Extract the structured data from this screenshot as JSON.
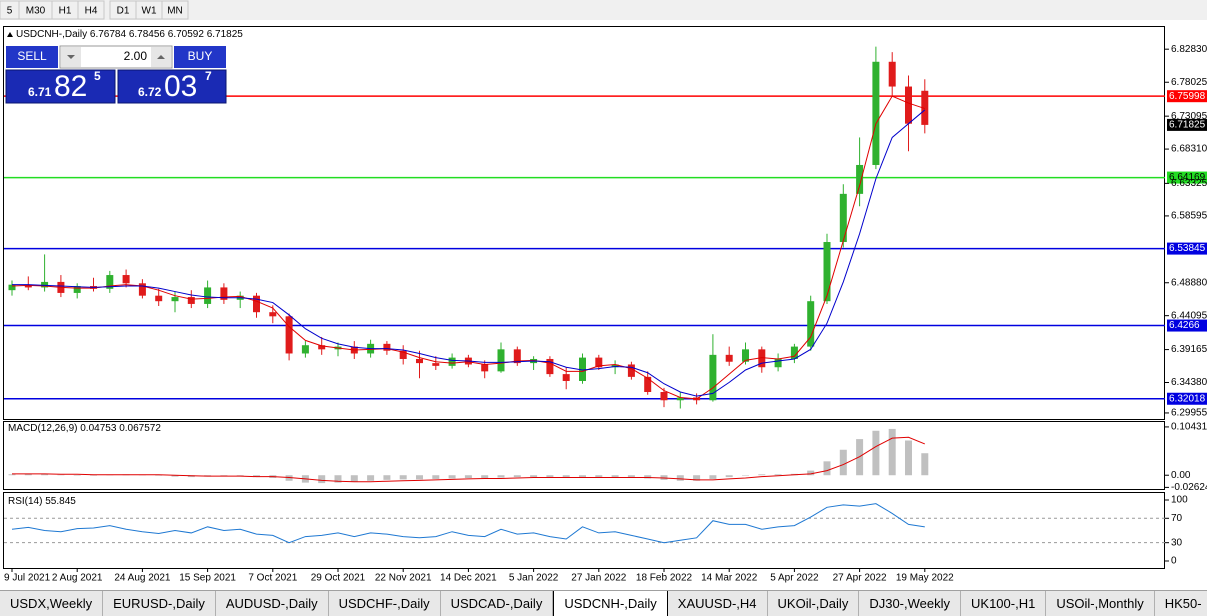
{
  "timeframes": [
    "5",
    "M30",
    "H1",
    "H4",
    "D1",
    "W1",
    "MN"
  ],
  "trade": {
    "sell": "SELL",
    "buy": "BUY",
    "volume": "2.00",
    "bid": {
      "head": "6.71",
      "big": "82",
      "sup": "5"
    },
    "ask": {
      "head": "6.72",
      "big": "03",
      "sup": "7"
    }
  },
  "chart_data": [
    {
      "type": "candlestick",
      "symbol": "USDCNH-,Daily",
      "up_color": "#2fb12f",
      "down_color": "#e01b1b",
      "ylim": [
        6.2893,
        6.862
      ],
      "yticks": [
        {
          "value": 6.8283,
          "label": "6.82830"
        },
        6.78025,
        6.73095,
        {
          "value": 6.6831,
          "label": "6.68310"
        },
        6.63325,
        6.58595,
        {
          "value": 6.4888,
          "label": "6.48880"
        },
        6.44095,
        6.39165,
        {
          "value": 6.3438,
          "label": "6.34380"
        },
        6.29955
      ],
      "categories": [
        "9 Jul 2021",
        null,
        null,
        null,
        "2 Aug 2021",
        null,
        null,
        null,
        "24 Aug 2021",
        null,
        null,
        null,
        "15 Sep 2021",
        null,
        null,
        null,
        "7 Oct 2021",
        null,
        null,
        null,
        "29 Oct 2021",
        null,
        null,
        null,
        "22 Nov 2021",
        null,
        null,
        null,
        "14 Dec 2021",
        null,
        null,
        null,
        "5 Jan 2022",
        null,
        null,
        null,
        "27 Jan 2022",
        null,
        null,
        null,
        "18 Feb 2022",
        null,
        null,
        null,
        "14 Mar 2022",
        null,
        null,
        null,
        "5 Apr 2022",
        null,
        null,
        null,
        "27 Apr 2022",
        null,
        null,
        null,
        "19 May 2022"
      ],
      "ohlc": [
        [
          6.478,
          6.492,
          6.47,
          6.486
        ],
        [
          6.486,
          6.498,
          6.478,
          6.482
        ],
        [
          6.482,
          6.53,
          6.476,
          6.49
        ],
        [
          6.49,
          6.5,
          6.468,
          6.474
        ],
        [
          6.474,
          6.488,
          6.466,
          6.484
        ],
        [
          6.484,
          6.496,
          6.476,
          6.48
        ],
        [
          6.48,
          6.506,
          6.474,
          6.5
        ],
        [
          6.5,
          6.508,
          6.482,
          6.488
        ],
        [
          6.488,
          6.494,
          6.466,
          6.47
        ],
        [
          6.47,
          6.48,
          6.455,
          6.462
        ],
        [
          6.462,
          6.476,
          6.446,
          6.468
        ],
        [
          6.468,
          6.478,
          6.452,
          6.458
        ],
        [
          6.458,
          6.492,
          6.452,
          6.482
        ],
        [
          6.482,
          6.488,
          6.458,
          6.464
        ],
        [
          6.464,
          6.476,
          6.452,
          6.47
        ],
        [
          6.47,
          6.474,
          6.438,
          6.446
        ],
        [
          6.446,
          6.456,
          6.43,
          6.44
        ],
        [
          6.44,
          6.444,
          6.376,
          6.386
        ],
        [
          6.386,
          6.404,
          6.38,
          6.398
        ],
        [
          6.398,
          6.41,
          6.384,
          6.392
        ],
        [
          6.392,
          6.402,
          6.382,
          6.396
        ],
        [
          6.396,
          6.404,
          6.378,
          6.386
        ],
        [
          6.386,
          6.406,
          6.38,
          6.4
        ],
        [
          6.4,
          6.404,
          6.384,
          6.39
        ],
        [
          6.39,
          6.398,
          6.37,
          6.378
        ],
        [
          6.378,
          6.39,
          6.35,
          6.372
        ],
        [
          6.372,
          6.382,
          6.362,
          6.368
        ],
        [
          6.368,
          6.386,
          6.364,
          6.38
        ],
        [
          6.38,
          6.384,
          6.366,
          6.37
        ],
        [
          6.37,
          6.376,
          6.35,
          6.36
        ],
        [
          6.36,
          6.402,
          6.358,
          6.392
        ],
        [
          6.392,
          6.396,
          6.368,
          6.372
        ],
        [
          6.372,
          6.382,
          6.362,
          6.378
        ],
        [
          6.378,
          6.382,
          6.352,
          6.356
        ],
        [
          6.356,
          6.366,
          6.334,
          6.346
        ],
        [
          6.346,
          6.386,
          6.342,
          6.38
        ],
        [
          6.38,
          6.384,
          6.362,
          6.366
        ],
        [
          6.366,
          6.376,
          6.356,
          6.37
        ],
        [
          6.37,
          6.374,
          6.348,
          6.352
        ],
        [
          6.352,
          6.36,
          6.326,
          6.33
        ],
        [
          6.33,
          6.336,
          6.308,
          6.318
        ],
        [
          6.318,
          6.33,
          6.306,
          6.322
        ],
        [
          6.322,
          6.328,
          6.312,
          6.318
        ],
        [
          6.318,
          6.414,
          6.316,
          6.384
        ],
        [
          6.384,
          6.396,
          6.368,
          6.374
        ],
        [
          6.374,
          6.402,
          6.37,
          6.392
        ],
        [
          6.392,
          6.396,
          6.358,
          6.366
        ],
        [
          6.366,
          6.386,
          6.36,
          6.378
        ],
        [
          6.378,
          6.4,
          6.372,
          6.396
        ],
        [
          6.396,
          6.47,
          6.39,
          6.462
        ],
        [
          6.462,
          6.56,
          6.458,
          6.548
        ],
        [
          6.548,
          6.632,
          6.54,
          6.618
        ],
        [
          6.618,
          6.7,
          6.6,
          6.66
        ],
        [
          6.66,
          6.832,
          6.654,
          6.81
        ],
        [
          6.81,
          6.824,
          6.76,
          6.774
        ],
        [
          6.774,
          6.79,
          6.68,
          6.72
        ],
        [
          6.76784,
          6.78456,
          6.70592,
          6.71825
        ]
      ],
      "series": [
        {
          "color": "#e00000",
          "values": [
            6.484,
            6.485,
            6.484,
            6.482,
            6.481,
            6.481,
            6.484,
            6.486,
            6.484,
            6.478,
            6.47,
            6.465,
            6.466,
            6.468,
            6.469,
            6.462,
            6.452,
            6.425,
            6.405,
            6.397,
            6.394,
            6.391,
            6.392,
            6.393,
            6.388,
            6.38,
            6.374,
            6.372,
            6.374,
            6.37,
            6.372,
            6.375,
            6.376,
            6.372,
            6.36,
            6.36,
            6.368,
            6.37,
            6.364,
            6.35,
            6.332,
            6.322,
            6.32,
            6.336,
            6.356,
            6.376,
            6.38,
            6.378,
            6.382,
            6.41,
            6.47,
            6.55,
            6.63,
            6.72,
            6.76,
            6.75,
            6.742
          ]
        },
        {
          "color": "#0000cc",
          "values": [
            6.486,
            6.486,
            6.485,
            6.484,
            6.483,
            6.482,
            6.483,
            6.484,
            6.484,
            6.481,
            6.476,
            6.471,
            6.468,
            6.467,
            6.467,
            6.465,
            6.46,
            6.442,
            6.422,
            6.408,
            6.4,
            6.395,
            6.393,
            6.393,
            6.391,
            6.386,
            6.38,
            6.376,
            6.375,
            6.373,
            6.373,
            6.374,
            6.375,
            6.374,
            6.366,
            6.362,
            6.364,
            6.367,
            6.366,
            6.358,
            6.342,
            6.33,
            6.324,
            6.328,
            6.344,
            6.362,
            6.372,
            6.375,
            6.378,
            6.392,
            6.43,
            6.49,
            6.56,
            6.64,
            6.7,
            6.72,
            6.74
          ]
        }
      ],
      "levels": [
        {
          "value": 6.75998,
          "color": "#ff0000"
        },
        {
          "value": 6.64169,
          "color": "#22dd22"
        },
        {
          "value": 6.53845,
          "color": "#0000e0"
        },
        {
          "value": 6.4266,
          "color": "#0000e0"
        },
        {
          "value": 6.32018,
          "color": "#0000e0"
        }
      ]
    },
    {
      "type": "macd",
      "name": "MACD(12,26,9)",
      "bar_color": "#c0c0c0",
      "line_color": "#e00000",
      "ylim": [
        -0.0319,
        0.1171
      ],
      "yticks": [
        0.104313,
        {
          "value": 0,
          "label": "0.00"
        },
        -0.026249
      ],
      "histogram": [
        0.002,
        0.003,
        0.002,
        0.001,
        0.0,
        0.0,
        0.001,
        0.002,
        0.001,
        -0.001,
        -0.003,
        -0.004,
        -0.003,
        -0.002,
        -0.002,
        -0.004,
        -0.006,
        -0.012,
        -0.016,
        -0.017,
        -0.016,
        -0.014,
        -0.012,
        -0.01,
        -0.009,
        -0.009,
        -0.008,
        -0.007,
        -0.006,
        -0.006,
        -0.005,
        -0.004,
        -0.004,
        -0.004,
        -0.005,
        -0.005,
        -0.004,
        -0.004,
        -0.005,
        -0.007,
        -0.01,
        -0.012,
        -0.012,
        -0.008,
        -0.004,
        0.0,
        0.002,
        0.002,
        0.003,
        0.01,
        0.03,
        0.055,
        0.078,
        0.096,
        0.1,
        0.075,
        0.04753
      ],
      "signal": [
        0.003,
        0.003,
        0.003,
        0.002,
        0.002,
        0.001,
        0.001,
        0.001,
        0.001,
        0.001,
        0.0,
        -0.001,
        -0.002,
        -0.002,
        -0.002,
        -0.003,
        -0.003,
        -0.005,
        -0.008,
        -0.011,
        -0.013,
        -0.014,
        -0.014,
        -0.013,
        -0.012,
        -0.011,
        -0.01,
        -0.009,
        -0.008,
        -0.007,
        -0.007,
        -0.006,
        -0.005,
        -0.005,
        -0.005,
        -0.005,
        -0.005,
        -0.005,
        -0.005,
        -0.005,
        -0.006,
        -0.008,
        -0.01,
        -0.01,
        -0.008,
        -0.006,
        -0.003,
        -0.001,
        0.001,
        0.003,
        0.01,
        0.023,
        0.04,
        0.062,
        0.08,
        0.082,
        0.067572
      ]
    },
    {
      "type": "rsi",
      "name": "RSI(14)",
      "color": "#1e78d2",
      "ylim": [
        -11.5,
        113.1
      ],
      "yticks": [
        100,
        70,
        30,
        0
      ],
      "levels": [
        70,
        30
      ],
      "values": [
        52,
        55,
        50,
        48,
        53,
        54,
        58,
        52,
        48,
        45,
        50,
        46,
        56,
        50,
        52,
        44,
        42,
        30,
        40,
        42,
        46,
        40,
        46,
        44,
        40,
        38,
        40,
        48,
        42,
        40,
        52,
        44,
        46,
        40,
        36,
        56,
        46,
        48,
        42,
        36,
        30,
        34,
        38,
        66,
        60,
        60,
        52,
        56,
        58,
        72,
        88,
        92,
        90,
        94,
        78,
        60,
        55.845
      ]
    }
  ],
  "tabs": [
    "USDX,Weekly",
    "EURUSD-,Daily",
    "AUDUSD-,Daily",
    "USDCHF-,Daily",
    "USDCAD-,Daily",
    "USDCNH-,Daily",
    "XAUUSD-,H4",
    "UKOil-,Daily",
    "DJ30-,Weekly",
    "UK100-,H1",
    "USOil-,Monthly",
    "HK50-"
  ],
  "active_tab": 5
}
